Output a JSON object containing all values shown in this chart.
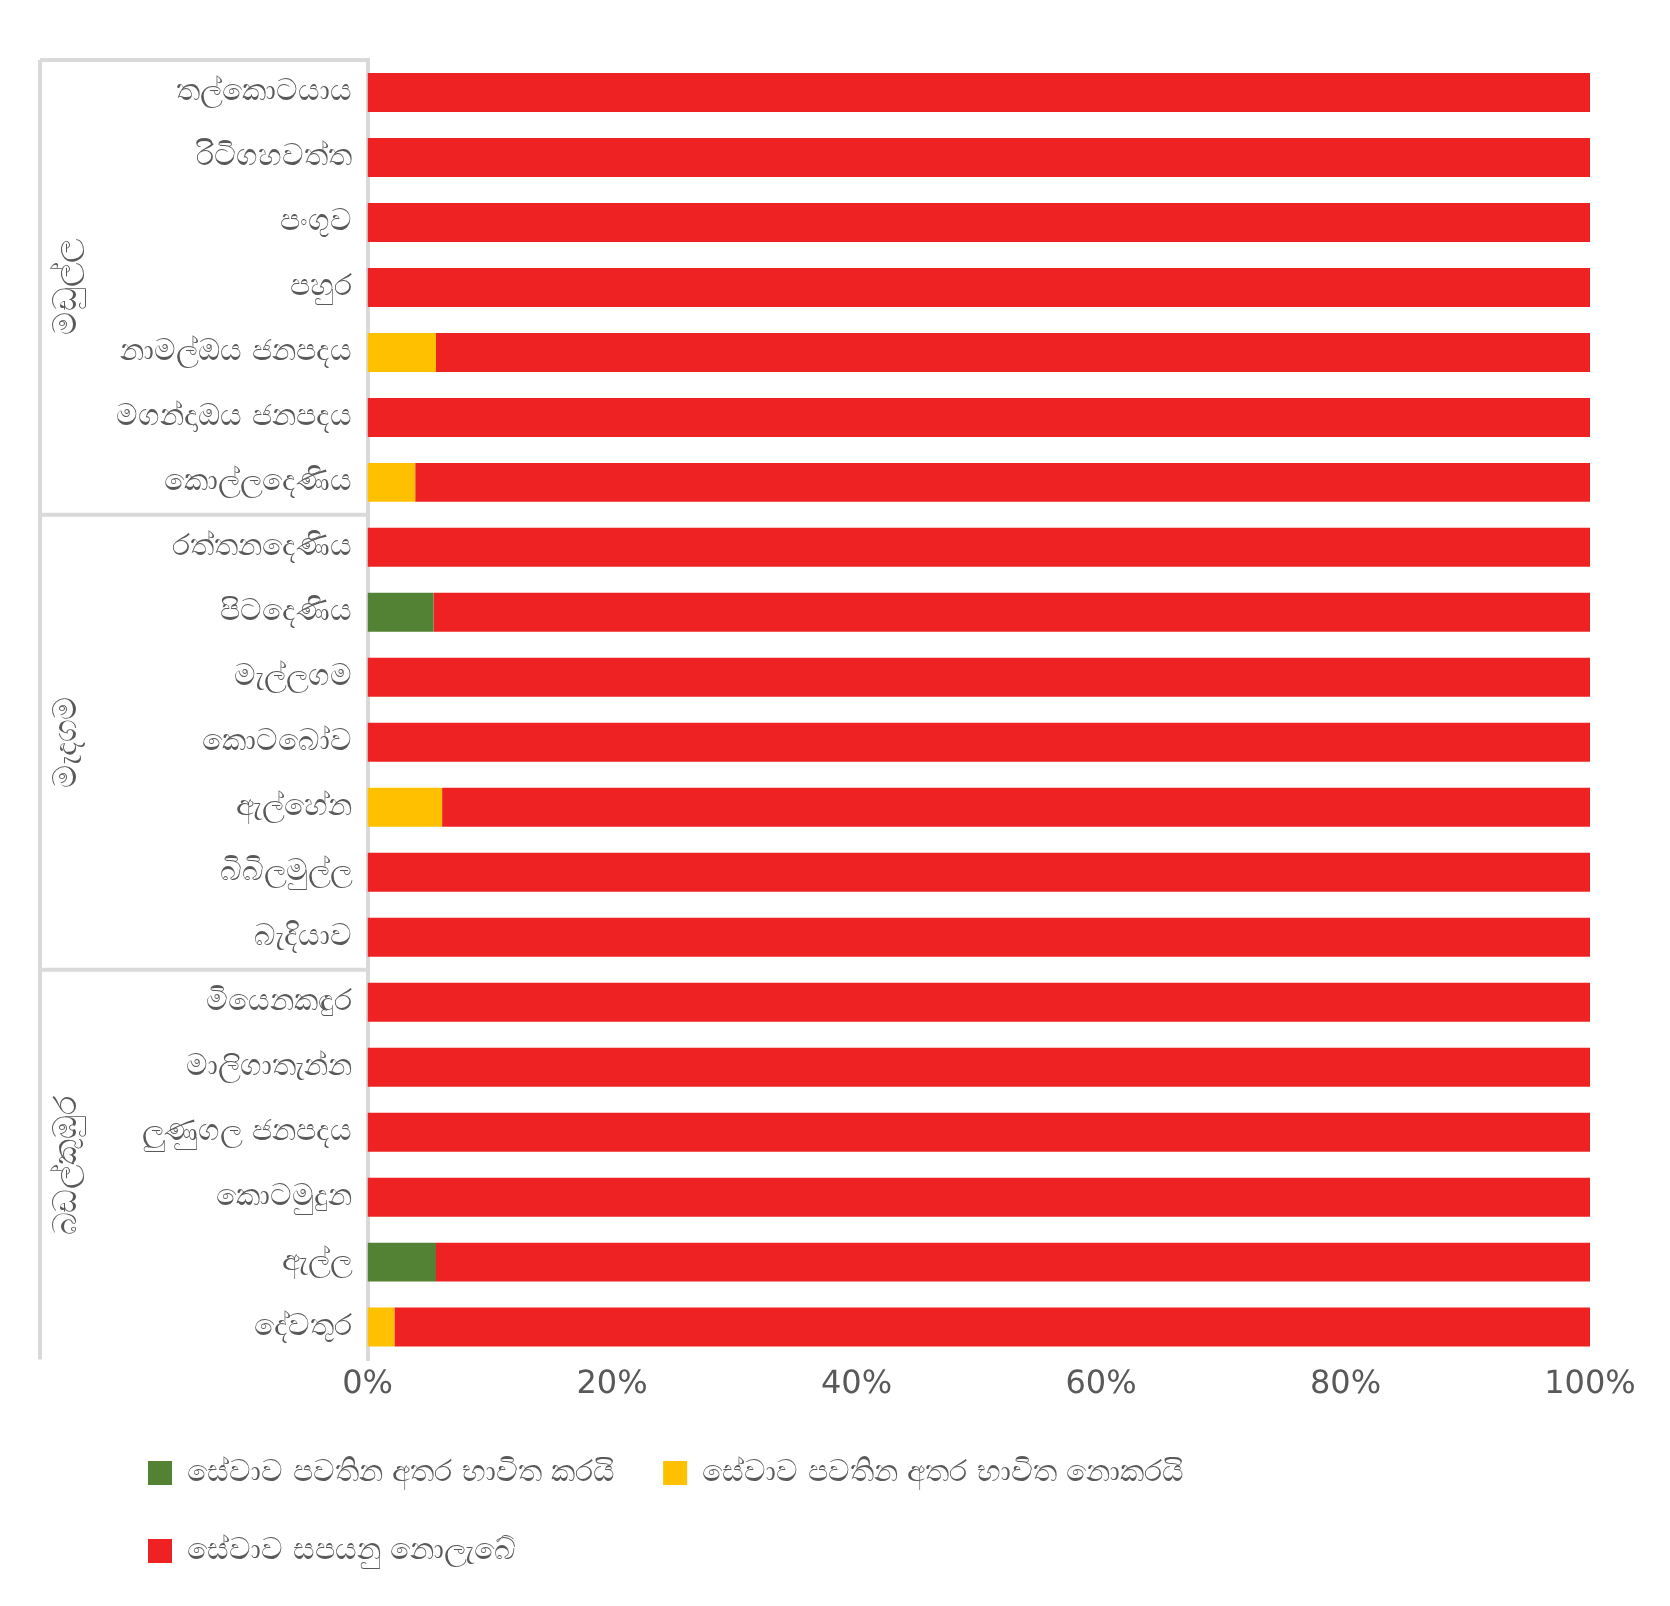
{
  "chart_data": {
    "type": "bar",
    "orientation": "horizontal",
    "stacked": true,
    "categories": [
      "තල්කොටයාය",
      "රිටිගහවත්ත",
      "පංගුව",
      "පහුර",
      "නාමල්ඔය ජනපදය",
      "මගන්දාඔය ජනපදය",
      "කොල්ලදෙණිය",
      "රත්තනදෙණිය",
      "පිටදෙණිය",
      "මැල්ලගම",
      "කොටබෝව",
      "ඇල්හේන",
      "බිබිලමුල්ල",
      "බැදියාව",
      "මියෙනකඳුර",
      "මාලිගාතැන්න",
      "ලුණුගල ජනපදය",
      "කොටමුදුන",
      "ඇල්ල",
      "දේවතුර"
    ],
    "series": [
      {
        "name": "සේවාව පවතින අතර භාවිත කරයි",
        "color": "#548235",
        "values": [
          0,
          0,
          0,
          0,
          0,
          0,
          0,
          0,
          5.4,
          0,
          0,
          0,
          0,
          0,
          0,
          0,
          0,
          0,
          5.6,
          0
        ]
      },
      {
        "name": "සේවාව පවතින අතර භාවිත නොකරයි",
        "color": "#ffc000",
        "values": [
          0,
          0,
          0,
          0,
          5.6,
          0,
          3.9,
          0,
          0,
          0,
          0,
          6.1,
          0,
          0,
          0,
          0,
          0,
          0,
          0,
          2.2
        ]
      },
      {
        "name": "සේවාව සපයනු නොලැබේ",
        "color": "#ee2222",
        "values": [
          100,
          100,
          100,
          100,
          94.4,
          100,
          96.1,
          100,
          94.6,
          100,
          100,
          93.9,
          100,
          100,
          100,
          100,
          100,
          100,
          94.4,
          97.8
        ]
      }
    ],
    "xlim": [
      0,
      100
    ],
    "xticks": [
      {
        "value": 0,
        "label": "0%"
      },
      {
        "value": 20,
        "label": "20%"
      },
      {
        "value": 40,
        "label": "40%"
      },
      {
        "value": 60,
        "label": "60%"
      },
      {
        "value": 80,
        "label": "80%"
      },
      {
        "value": 100,
        "label": "100%"
      }
    ],
    "grid": false,
    "legend": "bottom",
    "annotations": [
      "මඩුල්ල",
      "මැදගම",
      "බඩල්කුඹුර"
    ]
  }
}
